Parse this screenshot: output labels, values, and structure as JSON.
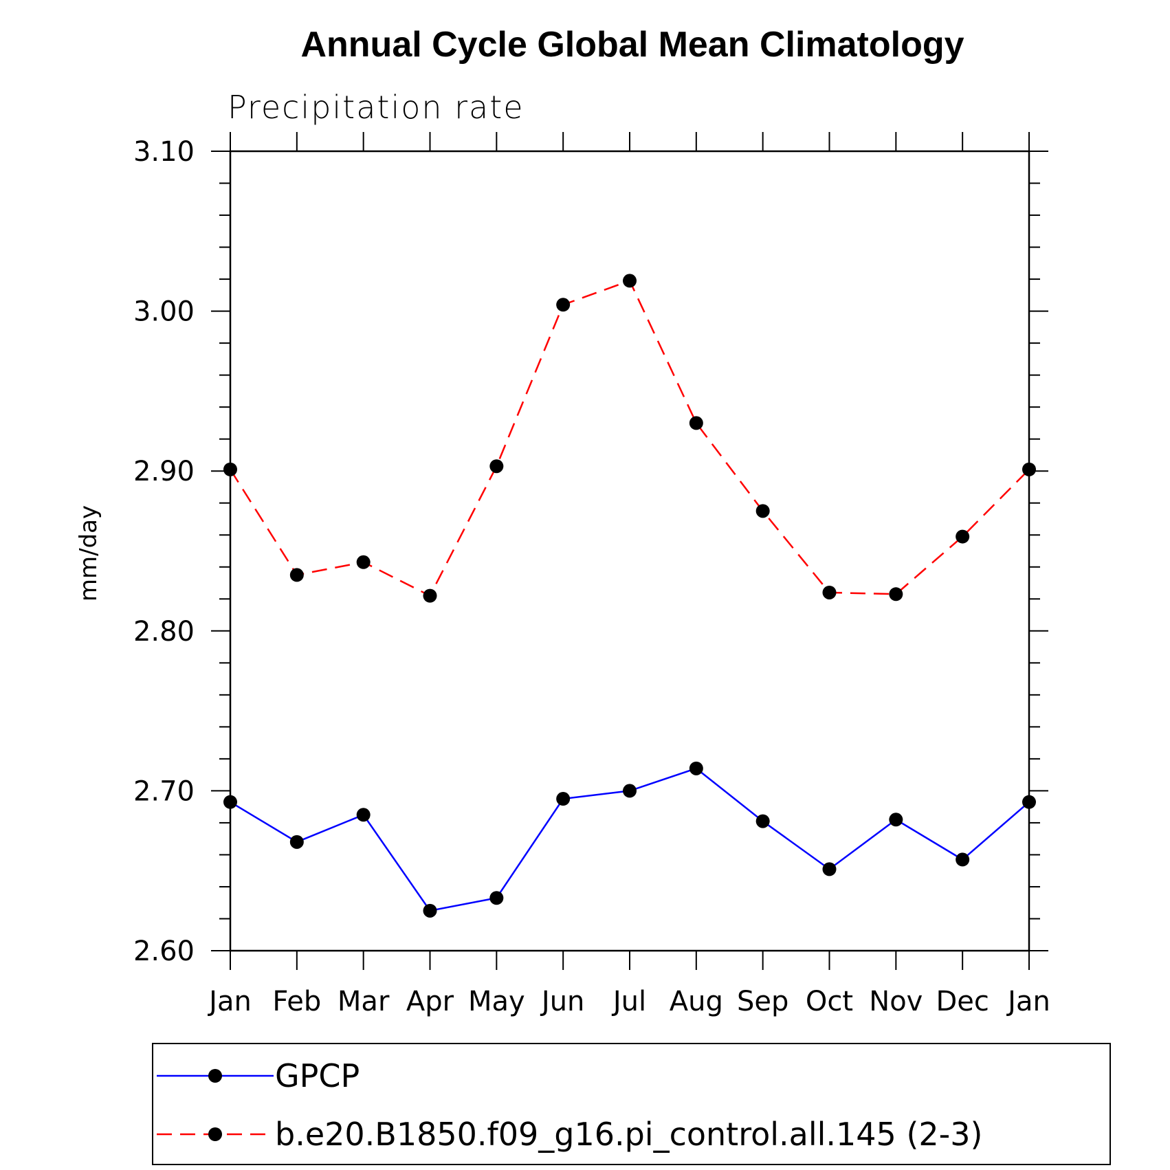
{
  "chart_data": {
    "type": "line",
    "title": "Annual Cycle Global Mean Climatology",
    "subtitle": "Precipitation rate",
    "ylabel": "mm/day",
    "xlabel": "",
    "ylim": [
      2.6,
      3.1
    ],
    "yticks": [
      "2.60",
      "2.70",
      "2.80",
      "2.90",
      "3.00",
      "3.10"
    ],
    "categories": [
      "Jan",
      "Feb",
      "Mar",
      "Apr",
      "May",
      "Jun",
      "Jul",
      "Aug",
      "Sep",
      "Oct",
      "Nov",
      "Dec",
      "Jan"
    ],
    "series": [
      {
        "name": "GPCP",
        "color": "#0000ff",
        "dash": "solid",
        "values": [
          2.693,
          2.668,
          2.685,
          2.625,
          2.633,
          2.695,
          2.7,
          2.714,
          2.681,
          2.651,
          2.682,
          2.657,
          2.693
        ]
      },
      {
        "name": "b.e20.B1850.f09_g16.pi_control.all.145 (2-3)",
        "color": "#ff0000",
        "dash": "dashed",
        "values": [
          2.901,
          2.835,
          2.843,
          2.822,
          2.903,
          3.004,
          3.019,
          2.93,
          2.875,
          2.824,
          2.823,
          2.859,
          2.901
        ]
      }
    ],
    "legend_position": "bottom",
    "grid": false
  }
}
